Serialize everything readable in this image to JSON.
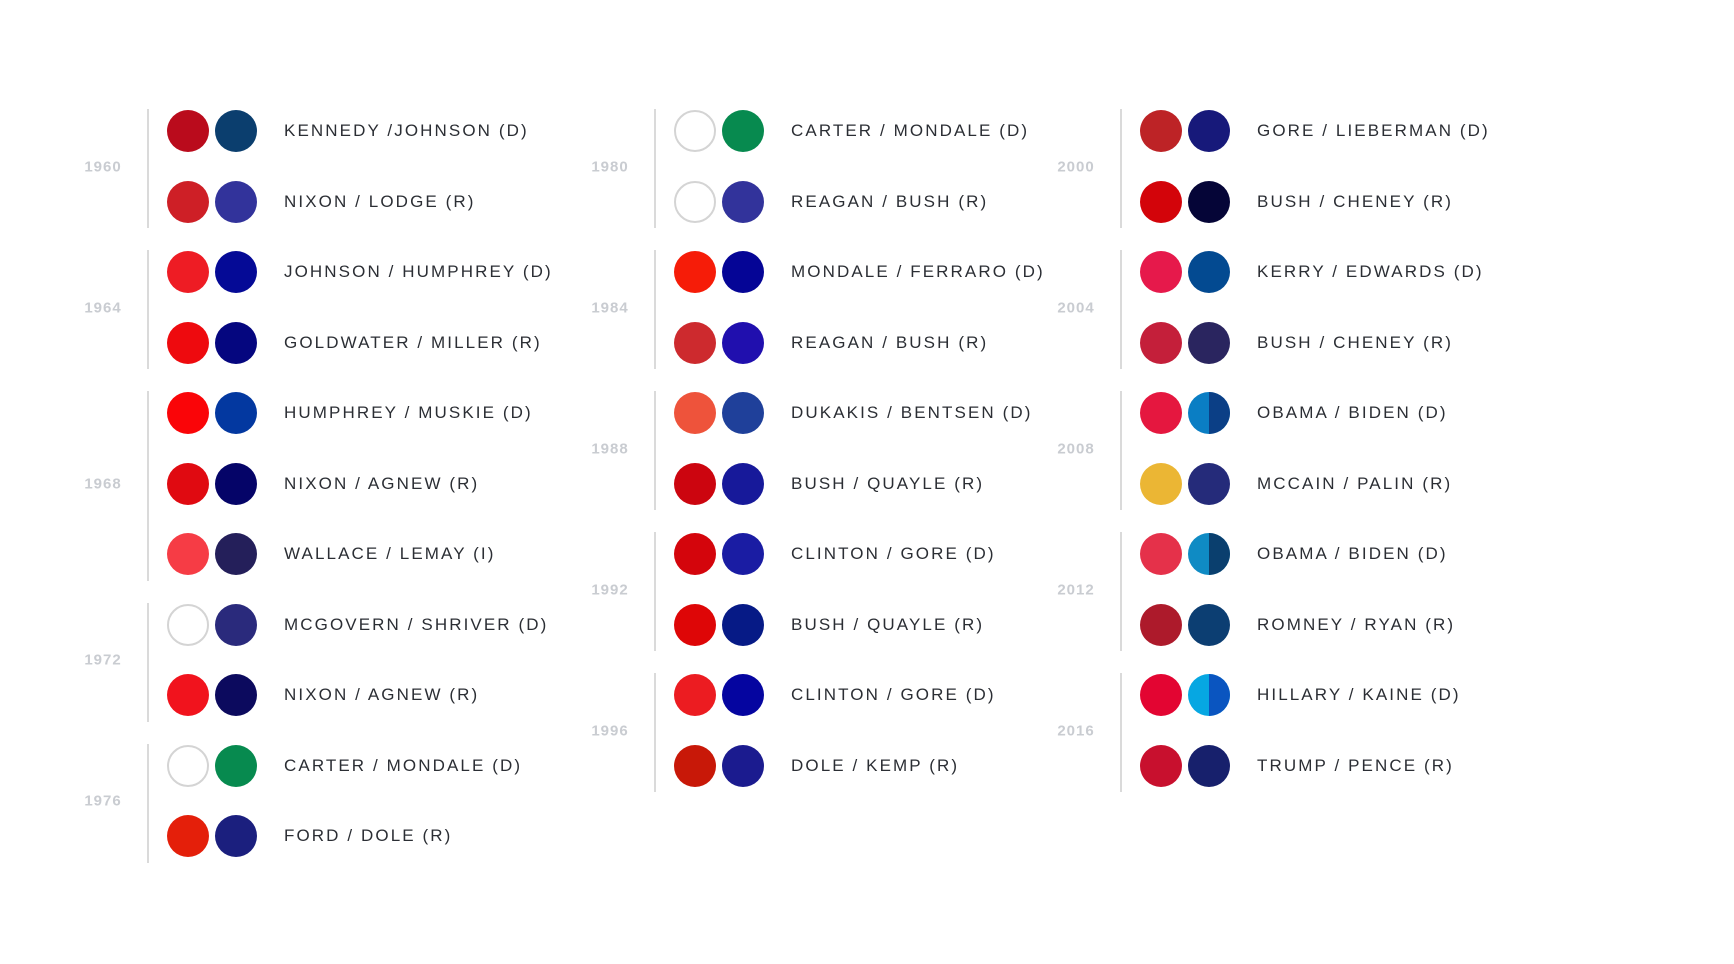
{
  "columns": [
    {
      "groups": [
        {
          "year": "1960",
          "tickets": [
            {
              "label": "KENNEDY /JOHNSON (D)",
              "colors": [
                "#ba0b1c",
                "#0b3e6e"
              ]
            },
            {
              "label": "NIXON / LODGE (R)",
              "colors": [
                "#ce1f26",
                "#32339b"
              ]
            }
          ]
        },
        {
          "year": "1964",
          "tickets": [
            {
              "label": "JOHNSON / HUMPHREY (D)",
              "colors": [
                "#ee1c24",
                "#050a96"
              ]
            },
            {
              "label": "GOLDWATER / MILLER (R)",
              "colors": [
                "#ee0a0e",
                "#05067f"
              ]
            }
          ]
        },
        {
          "year": "1968",
          "tickets": [
            {
              "label": "HUMPHREY / MUSKIE (D)",
              "colors": [
                "#fa0508",
                "#0338a0"
              ]
            },
            {
              "label": "NIXON / AGNEW (R)",
              "colors": [
                "#e00a11",
                "#050468"
              ]
            },
            {
              "label": "WALLACE / LEMAY (I)",
              "colors": [
                "#f63c45",
                "#241f5a"
              ]
            }
          ]
        },
        {
          "year": "1972",
          "tickets": [
            {
              "label": "MCGOVERN / SHRIVER (D)",
              "colors": [
                "#ffffff",
                "#2a2a7c"
              ]
            },
            {
              "label": "NIXON / AGNEW (R)",
              "colors": [
                "#f1131d",
                "#0c0a5e"
              ]
            }
          ]
        },
        {
          "year": "1976",
          "tickets": [
            {
              "label": "CARTER / MONDALE (D)",
              "colors": [
                "#ffffff",
                "#078a4f"
              ]
            },
            {
              "label": "FORD / DOLE (R)",
              "colors": [
                "#e41f0a",
                "#1b1f7e"
              ]
            }
          ]
        }
      ]
    },
    {
      "groups": [
        {
          "year": "1980",
          "tickets": [
            {
              "label": "CARTER / MONDALE (D)",
              "colors": [
                "#ffffff",
                "#078a4f"
              ]
            },
            {
              "label": "REAGAN / BUSH (R)",
              "colors": [
                "#ffffff",
                "#32339b"
              ]
            }
          ]
        },
        {
          "year": "1984",
          "tickets": [
            {
              "label": "MONDALE / FERRARO (D)",
              "colors": [
                "#f61c08",
                "#050596"
              ]
            },
            {
              "label": "REAGAN / BUSH (R)",
              "colors": [
                "#cd2a2e",
                "#200fae"
              ]
            }
          ]
        },
        {
          "year": "1988",
          "tickets": [
            {
              "label": "DUKAKIS / BENTSEN (D)",
              "colors": [
                "#ee533b",
                "#1f409a"
              ]
            },
            {
              "label": "BUSH / QUAYLE (R)",
              "colors": [
                "#cc050f",
                "#17199a"
              ]
            }
          ]
        },
        {
          "year": "1992",
          "tickets": [
            {
              "label": "CLINTON / GORE (D)",
              "colors": [
                "#d4050c",
                "#1a1ca3"
              ]
            },
            {
              "label": "BUSH / QUAYLE (R)",
              "colors": [
                "#de0607",
                "#061a86"
              ]
            }
          ]
        },
        {
          "year": "1996",
          "tickets": [
            {
              "label": "CLINTON / GORE (D)",
              "colors": [
                "#ec1c21",
                "#0505a0"
              ]
            },
            {
              "label": "DOLE / KEMP (R)",
              "colors": [
                "#c81808",
                "#1b1b8f"
              ]
            }
          ]
        }
      ]
    },
    {
      "groups": [
        {
          "year": "2000",
          "tickets": [
            {
              "label": "GORE / LIEBERMAN (D)",
              "colors": [
                "#bd2326",
                "#17197a"
              ]
            },
            {
              "label": "BUSH / CHENEY (R)",
              "colors": [
                "#d3040a",
                "#050537"
              ]
            }
          ]
        },
        {
          "year": "2004",
          "tickets": [
            {
              "label": "KERRY / EDWARDS (D)",
              "colors": [
                "#e6194b",
                "#034a91"
              ]
            },
            {
              "label": "BUSH / CHENEY (R)",
              "colors": [
                "#c41f3a",
                "#2a255f"
              ]
            }
          ]
        },
        {
          "year": "2008",
          "tickets": [
            {
              "label": "OBAMA / BIDEN (D)",
              "colors": [
                "#e5173f",
                "#0a7ec4"
              ],
              "split": "#0b3f86"
            },
            {
              "label": "MCCAIN / PALIN (R)",
              "colors": [
                "#ebb634",
                "#252b7a"
              ]
            }
          ]
        },
        {
          "year": "2012",
          "tickets": [
            {
              "label": "OBAMA / BIDEN (D)",
              "colors": [
                "#e5314a",
                "#0f8bc4"
              ],
              "split": "#0a3f6e"
            },
            {
              "label": "ROMNEY / RYAN (R)",
              "colors": [
                "#ad1a2b",
                "#0c3e72"
              ]
            }
          ]
        },
        {
          "year": "2016",
          "tickets": [
            {
              "label": "HILLARY / KAINE (D)",
              "colors": [
                "#e30532",
                "#06a7e2"
              ],
              "split": "#0a55c0"
            },
            {
              "label": "TRUMP / PENCE (R)",
              "colors": [
                "#c8102e",
                "#17206c"
              ]
            }
          ]
        }
      ]
    }
  ]
}
